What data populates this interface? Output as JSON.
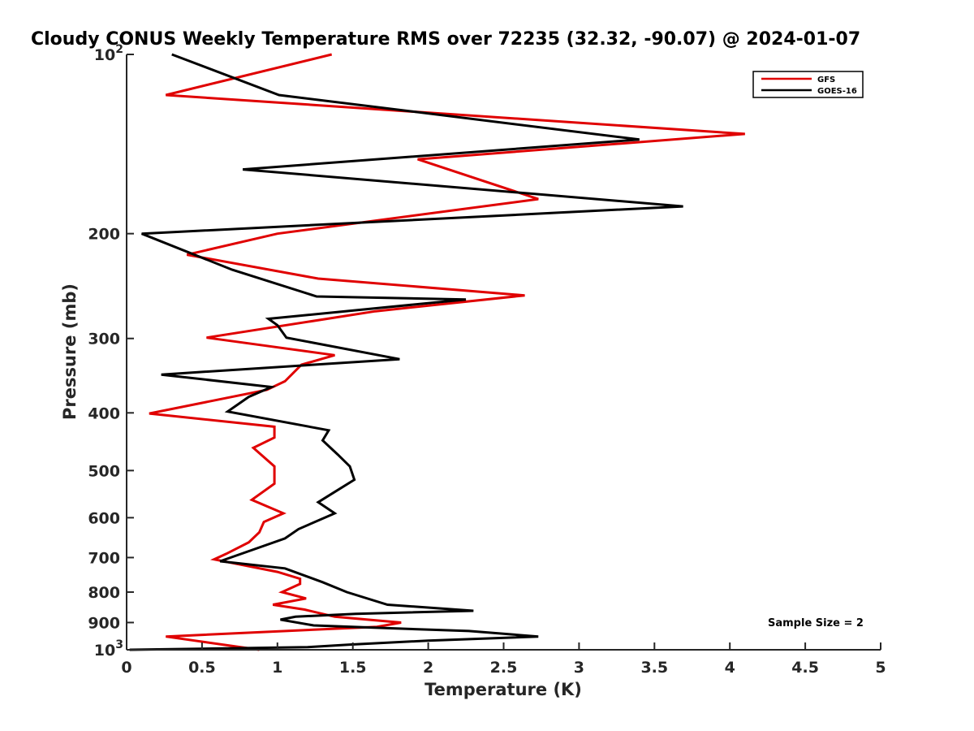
{
  "chart_data": {
    "type": "line",
    "title": "Cloudy CONUS Weekly Temperature RMS over 72235 (32.32, -90.07) @ 2024-01-07",
    "xlabel": "Temperature (K)",
    "ylabel": "Pressure (mb)",
    "xlim": [
      0,
      5
    ],
    "ylim": [
      100,
      1000
    ],
    "y_scale": "log",
    "y_reversed": true,
    "grid": false,
    "legend_position": "top-right",
    "x_ticks": [
      {
        "value": 0,
        "label": "0"
      },
      {
        "value": 0.5,
        "label": "0.5"
      },
      {
        "value": 1,
        "label": "1"
      },
      {
        "value": 1.5,
        "label": "1.5"
      },
      {
        "value": 2,
        "label": "2"
      },
      {
        "value": 2.5,
        "label": "2.5"
      },
      {
        "value": 3,
        "label": "3"
      },
      {
        "value": 3.5,
        "label": "3.5"
      },
      {
        "value": 4,
        "label": "4"
      },
      {
        "value": 4.5,
        "label": "4.5"
      },
      {
        "value": 5,
        "label": "5"
      }
    ],
    "y_ticks": [
      {
        "value": 100,
        "base": "10",
        "exp": "2"
      },
      {
        "value": 200,
        "base": "200",
        "exp": ""
      },
      {
        "value": 300,
        "base": "300",
        "exp": ""
      },
      {
        "value": 400,
        "base": "400",
        "exp": ""
      },
      {
        "value": 500,
        "base": "500",
        "exp": ""
      },
      {
        "value": 600,
        "base": "600",
        "exp": ""
      },
      {
        "value": 700,
        "base": "700",
        "exp": ""
      },
      {
        "value": 800,
        "base": "800",
        "exp": ""
      },
      {
        "value": 900,
        "base": "900",
        "exp": ""
      },
      {
        "value": 1000,
        "base": "10",
        "exp": "3"
      }
    ],
    "series": [
      {
        "name": "GFS",
        "color": "#e00000",
        "points": [
          [
            1.36,
            100
          ],
          [
            0.26,
            117
          ],
          [
            4.1,
            136
          ],
          [
            1.93,
            150
          ],
          [
            2.73,
            175
          ],
          [
            1.0,
            200
          ],
          [
            0.4,
            217
          ],
          [
            1.27,
            238
          ],
          [
            2.64,
            254
          ],
          [
            1.65,
            270
          ],
          [
            0.53,
            299
          ],
          [
            1.38,
            320
          ],
          [
            1.16,
            332
          ],
          [
            1.05,
            354
          ],
          [
            0.93,
            366
          ],
          [
            0.15,
            401
          ],
          [
            0.98,
            422
          ],
          [
            0.98,
            440
          ],
          [
            0.84,
            458
          ],
          [
            0.98,
            492
          ],
          [
            0.98,
            526
          ],
          [
            0.83,
            560
          ],
          [
            1.04,
            590
          ],
          [
            0.91,
            610
          ],
          [
            0.88,
            635
          ],
          [
            0.81,
            660
          ],
          [
            0.66,
            690
          ],
          [
            0.58,
            705
          ],
          [
            1.0,
            740
          ],
          [
            1.15,
            760
          ],
          [
            1.15,
            775
          ],
          [
            1.03,
            800
          ],
          [
            1.19,
            820
          ],
          [
            0.97,
            840
          ],
          [
            1.18,
            856
          ],
          [
            1.38,
            880
          ],
          [
            1.82,
            900
          ],
          [
            1.66,
            915
          ],
          [
            0.26,
            950
          ],
          [
            0.88,
            1000
          ]
        ]
      },
      {
        "name": "GOES-16",
        "color": "#000000",
        "points": [
          [
            0.3,
            100
          ],
          [
            1.01,
            117
          ],
          [
            3.4,
            139
          ],
          [
            0.77,
            156
          ],
          [
            3.69,
            180
          ],
          [
            0.1,
            200
          ],
          [
            0.7,
            230
          ],
          [
            1.26,
            255
          ],
          [
            2.25,
            258
          ],
          [
            0.94,
            278
          ],
          [
            1.0,
            285
          ],
          [
            1.06,
            299
          ],
          [
            1.81,
            325
          ],
          [
            0.23,
            345
          ],
          [
            0.96,
            362
          ],
          [
            0.81,
            376
          ],
          [
            0.67,
            398
          ],
          [
            1.34,
            428
          ],
          [
            1.3,
            445
          ],
          [
            1.4,
            470
          ],
          [
            1.48,
            492
          ],
          [
            1.51,
            518
          ],
          [
            1.37,
            545
          ],
          [
            1.27,
            565
          ],
          [
            1.38,
            590
          ],
          [
            1.14,
            627
          ],
          [
            1.05,
            650
          ],
          [
            0.62,
            710
          ],
          [
            1.05,
            730
          ],
          [
            1.3,
            770
          ],
          [
            1.46,
            800
          ],
          [
            1.73,
            840
          ],
          [
            2.3,
            860
          ],
          [
            1.52,
            870
          ],
          [
            1.12,
            880
          ],
          [
            1.02,
            890
          ],
          [
            1.24,
            910
          ],
          [
            1.75,
            920
          ],
          [
            2.27,
            930
          ],
          [
            2.73,
            950
          ],
          [
            2.0,
            965
          ],
          [
            1.48,
            980
          ],
          [
            1.2,
            990
          ],
          [
            0.25,
            998
          ],
          [
            0.02,
            1000
          ]
        ]
      }
    ],
    "annotations": [
      "Sample Size = 2"
    ]
  }
}
